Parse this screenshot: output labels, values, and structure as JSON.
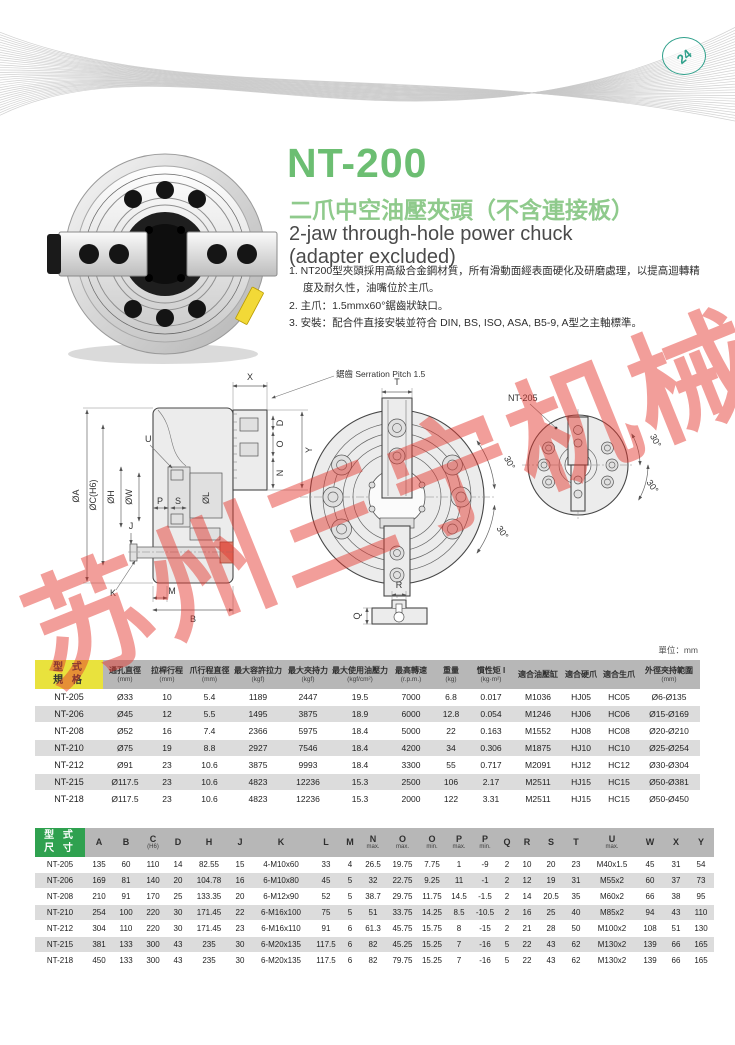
{
  "header": {
    "logo_text": "24"
  },
  "product": {
    "model": "NT-200",
    "title_zh": "二爪中空油壓夾頭（不含連接板）",
    "title_en_line1": "2-jaw through-hole power chuck",
    "title_en_line2": "(adapter excluded)",
    "features": [
      "1. NT200型夾頭採用高級合金鋼材質，所有滑動面經表面硬化及研磨處理，以提高迴轉精度及耐久性，油嘴位於主爪。",
      "2. 主爪：1.5mmx60°鋸齒狀缺口。",
      "3. 安裝：配合件直接安裝並符合 DIN, BS, ISO, ASA, B5-9, A型之主軸標準。"
    ]
  },
  "drawing": {
    "serration_label": "鋸齒 Serration Pitch 1.5",
    "model_label": "NT-205",
    "labels": {
      "x": "X",
      "y": "Y",
      "u": "U",
      "d": "D",
      "o": "O",
      "n": "N",
      "dia_a": "ØA",
      "dia_c": "ØC(H6)",
      "dia_h": "ØH",
      "dia_w": "ØW",
      "dia_l": "ØL",
      "p": "P",
      "s": "S",
      "j": "J",
      "k": "K",
      "m": "M",
      "b": "B",
      "t": "T",
      "q": "Q",
      "r": "R",
      "angle1": "30°",
      "angle2": "30°",
      "angle3": "30°",
      "angle4": "30°"
    },
    "watermark": "苏州三宁机械"
  },
  "unit_note": "單位：mm",
  "spec_table": {
    "corner_line1": "型 式",
    "corner_line2": "規 格",
    "headers": [
      {
        "main": "通孔直徑",
        "sub": "(mm)"
      },
      {
        "main": "拉桿行程",
        "sub": "(mm)"
      },
      {
        "main": "爪行程直徑",
        "sub": "(mm)"
      },
      {
        "main": "最大容許拉力",
        "sub": "(kgf)"
      },
      {
        "main": "最大夾持力",
        "sub": "(kgf)"
      },
      {
        "main": "最大使用油壓力",
        "sub": "(kgf/cm²)"
      },
      {
        "main": "最高轉速",
        "sub": "(r.p.m.)"
      },
      {
        "main": "重量",
        "sub": "(kg)"
      },
      {
        "main": "慣性矩 I",
        "sub": "(kg·m²)"
      },
      {
        "main": "適合油壓缸",
        "sub": ""
      },
      {
        "main": "適合硬爪",
        "sub": ""
      },
      {
        "main": "適合生爪",
        "sub": ""
      },
      {
        "main": "外徑夾持範圍",
        "sub": "(mm)"
      }
    ],
    "rows": [
      [
        "NT-205",
        "Ø33",
        "10",
        "5.4",
        "1189",
        "2447",
        "19.5",
        "7000",
        "6.8",
        "0.017",
        "M1036",
        "HJ05",
        "HC05",
        "Ø6-Ø135"
      ],
      [
        "NT-206",
        "Ø45",
        "12",
        "5.5",
        "1495",
        "3875",
        "18.9",
        "6000",
        "12.8",
        "0.054",
        "M1246",
        "HJ06",
        "HC06",
        "Ø15-Ø169"
      ],
      [
        "NT-208",
        "Ø52",
        "16",
        "7.4",
        "2366",
        "5975",
        "18.4",
        "5000",
        "22",
        "0.163",
        "M1552",
        "HJ08",
        "HC08",
        "Ø20-Ø210"
      ],
      [
        "NT-210",
        "Ø75",
        "19",
        "8.8",
        "2927",
        "7546",
        "18.4",
        "4200",
        "34",
        "0.306",
        "M1875",
        "HJ10",
        "HC10",
        "Ø25-Ø254"
      ],
      [
        "NT-212",
        "Ø91",
        "23",
        "10.6",
        "3875",
        "9993",
        "18.4",
        "3300",
        "55",
        "0.717",
        "M2091",
        "HJ12",
        "HC12",
        "Ø30-Ø304"
      ],
      [
        "NT-215",
        "Ø117.5",
        "23",
        "10.6",
        "4823",
        "12236",
        "15.3",
        "2500",
        "106",
        "2.17",
        "M2511",
        "HJ15",
        "HC15",
        "Ø50-Ø381"
      ],
      [
        "NT-218",
        "Ø117.5",
        "23",
        "10.6",
        "4823",
        "12236",
        "15.3",
        "2000",
        "122",
        "3.31",
        "M2511",
        "HJ15",
        "HC15",
        "Ø50-Ø450"
      ]
    ]
  },
  "dim_table": {
    "corner_line1": "型 式",
    "corner_line2": "尺 寸",
    "headers": [
      {
        "main": "A",
        "sub": ""
      },
      {
        "main": "B",
        "sub": ""
      },
      {
        "main": "C",
        "sub": "(H6)"
      },
      {
        "main": "D",
        "sub": ""
      },
      {
        "main": "H",
        "sub": ""
      },
      {
        "main": "J",
        "sub": ""
      },
      {
        "main": "K",
        "sub": ""
      },
      {
        "main": "L",
        "sub": ""
      },
      {
        "main": "M",
        "sub": ""
      },
      {
        "main": "N",
        "sub": "max."
      },
      {
        "main": "O",
        "sub": "max."
      },
      {
        "main": "O",
        "sub": "min."
      },
      {
        "main": "P",
        "sub": "max."
      },
      {
        "main": "P",
        "sub": "min."
      },
      {
        "main": "Q",
        "sub": ""
      },
      {
        "main": "R",
        "sub": ""
      },
      {
        "main": "S",
        "sub": ""
      },
      {
        "main": "T",
        "sub": ""
      },
      {
        "main": "U",
        "sub": "max."
      },
      {
        "main": "W",
        "sub": ""
      },
      {
        "main": "X",
        "sub": ""
      },
      {
        "main": "Y",
        "sub": ""
      }
    ],
    "rows": [
      [
        "NT-205",
        "135",
        "60",
        "110",
        "14",
        "82.55",
        "15",
        "4-M10x60",
        "33",
        "4",
        "26.5",
        "19.75",
        "7.75",
        "1",
        "-9",
        "2",
        "10",
        "20",
        "23",
        "M40x1.5",
        "45",
        "31",
        "54"
      ],
      [
        "NT-206",
        "169",
        "81",
        "140",
        "20",
        "104.78",
        "16",
        "6-M10x80",
        "45",
        "5",
        "32",
        "22.75",
        "9.25",
        "11",
        "-1",
        "2",
        "12",
        "19",
        "31",
        "M55x2",
        "60",
        "37",
        "73"
      ],
      [
        "NT-208",
        "210",
        "91",
        "170",
        "25",
        "133.35",
        "20",
        "6-M12x90",
        "52",
        "5",
        "38.7",
        "29.75",
        "11.75",
        "14.5",
        "-1.5",
        "2",
        "14",
        "20.5",
        "35",
        "M60x2",
        "66",
        "38",
        "95"
      ],
      [
        "NT-210",
        "254",
        "100",
        "220",
        "30",
        "171.45",
        "22",
        "6-M16x100",
        "75",
        "5",
        "51",
        "33.75",
        "14.25",
        "8.5",
        "-10.5",
        "2",
        "16",
        "25",
        "40",
        "M85x2",
        "94",
        "43",
        "110"
      ],
      [
        "NT-212",
        "304",
        "110",
        "220",
        "30",
        "171.45",
        "23",
        "6-M16x110",
        "91",
        "6",
        "61.3",
        "45.75",
        "15.75",
        "8",
        "-15",
        "2",
        "21",
        "28",
        "50",
        "M100x2",
        "108",
        "51",
        "130"
      ],
      [
        "NT-215",
        "381",
        "133",
        "300",
        "43",
        "235",
        "30",
        "6-M20x135",
        "117.5",
        "6",
        "82",
        "45.25",
        "15.25",
        "7",
        "-16",
        "5",
        "22",
        "43",
        "62",
        "M130x2",
        "139",
        "66",
        "165"
      ],
      [
        "NT-218",
        "450",
        "133",
        "300",
        "43",
        "235",
        "30",
        "6-M20x135",
        "117.5",
        "6",
        "82",
        "79.75",
        "15.25",
        "7",
        "-16",
        "5",
        "22",
        "43",
        "62",
        "M130x2",
        "139",
        "66",
        "165"
      ]
    ]
  }
}
